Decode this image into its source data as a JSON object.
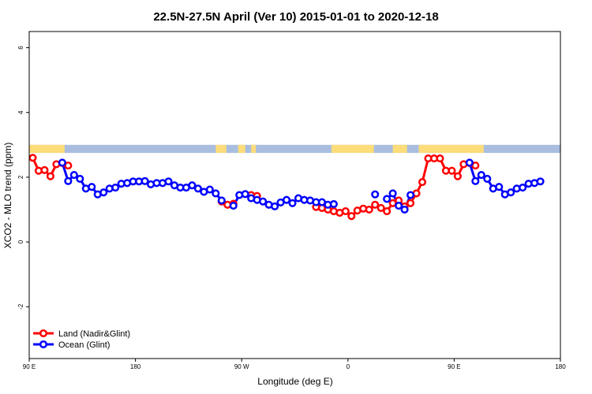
{
  "chart_data": {
    "type": "line",
    "title": "22.5N-27.5N April (Ver 10)   2015-01-01 to 2020-12-18",
    "xlabel": "Longitude (deg E)",
    "ylabel": "XCO2 - MLO trend (ppm)",
    "x_ticks": [
      {
        "value": 90,
        "label": "90 E"
      },
      {
        "value": 180,
        "label": "180"
      },
      {
        "value": 270,
        "label": "90 W"
      },
      {
        "value": 360,
        "label": "0"
      },
      {
        "value": 450,
        "label": "90 E"
      },
      {
        "value": 540,
        "label": "180"
      }
    ],
    "xlim": [
      90,
      540
    ],
    "y_ticks": [
      {
        "value": -2,
        "label": "-2"
      },
      {
        "value": 0,
        "label": "0"
      },
      {
        "value": 2,
        "label": "2"
      },
      {
        "value": 4,
        "label": "4"
      },
      {
        "value": 6,
        "label": "6"
      }
    ],
    "ylim": [
      -3.6,
      6.5
    ],
    "colors": {
      "land": "#ff0000",
      "ocean": "#0000ff",
      "map_land": "#fddc7a",
      "map_ocean": "#a9bedf"
    },
    "map_strip": {
      "y_range": [
        2.75,
        3.0
      ],
      "land_segments": [
        [
          90,
          120
        ],
        [
          248,
          257
        ],
        [
          267,
          273
        ],
        [
          278,
          282
        ],
        [
          346,
          382
        ],
        [
          398,
          410
        ],
        [
          420,
          475
        ]
      ]
    },
    "series": [
      {
        "name": "Land (Nadir&Glint)",
        "segments": [
          [
            [
              93,
              2.6
            ],
            [
              98,
              2.2
            ],
            [
              103,
              2.22
            ],
            [
              108,
              2.03
            ],
            [
              113,
              2.4
            ],
            [
              118,
              2.44
            ],
            [
              123,
              2.36
            ]
          ],
          [
            [
              253,
              1.25
            ],
            [
              258,
              1.15
            ],
            [
              263,
              1.18
            ]
          ],
          [
            [
              278,
              1.45
            ],
            [
              283,
              1.42
            ]
          ],
          [
            [
              333,
              1.08
            ],
            [
              338,
              1.05
            ],
            [
              343,
              1.0
            ],
            [
              348,
              0.95
            ],
            [
              353,
              0.9
            ],
            [
              358,
              0.95
            ],
            [
              363,
              0.8
            ],
            [
              368,
              0.97
            ],
            [
              373,
              1.03
            ],
            [
              378,
              1.0
            ],
            [
              383,
              1.15
            ],
            [
              388,
              1.05
            ],
            [
              393,
              0.95
            ],
            [
              398,
              1.2
            ],
            [
              403,
              1.28
            ],
            [
              408,
              1.1
            ],
            [
              413,
              1.2
            ],
            [
              418,
              1.5
            ],
            [
              423,
              1.85
            ],
            [
              428,
              2.58
            ],
            [
              433,
              2.58
            ],
            [
              438,
              2.58
            ],
            [
              443,
              2.2
            ],
            [
              448,
              2.2
            ],
            [
              453,
              2.03
            ],
            [
              458,
              2.4
            ],
            [
              463,
              2.44
            ],
            [
              468,
              2.36
            ]
          ]
        ]
      },
      {
        "name": "Ocean (Glint)",
        "segments": [
          [
            [
              118,
              2.45
            ],
            [
              123,
              1.88
            ],
            [
              128,
              2.07
            ],
            [
              133,
              1.95
            ],
            [
              138,
              1.65
            ],
            [
              143,
              1.7
            ],
            [
              148,
              1.47
            ],
            [
              153,
              1.53
            ],
            [
              158,
              1.65
            ],
            [
              163,
              1.68
            ],
            [
              168,
              1.8
            ],
            [
              173,
              1.82
            ],
            [
              178,
              1.87
            ],
            [
              183,
              1.87
            ],
            [
              188,
              1.88
            ],
            [
              193,
              1.78
            ],
            [
              198,
              1.82
            ],
            [
              203,
              1.82
            ],
            [
              208,
              1.87
            ],
            [
              213,
              1.75
            ],
            [
              218,
              1.68
            ],
            [
              223,
              1.68
            ],
            [
              228,
              1.75
            ],
            [
              233,
              1.65
            ],
            [
              238,
              1.55
            ],
            [
              243,
              1.62
            ],
            [
              248,
              1.5
            ],
            [
              253,
              1.28
            ]
          ],
          [
            [
              263,
              1.12
            ],
            [
              268,
              1.45
            ],
            [
              273,
              1.48
            ],
            [
              278,
              1.35
            ],
            [
              283,
              1.3
            ],
            [
              288,
              1.25
            ],
            [
              293,
              1.15
            ],
            [
              298,
              1.1
            ],
            [
              303,
              1.22
            ],
            [
              308,
              1.3
            ],
            [
              313,
              1.2
            ],
            [
              318,
              1.35
            ],
            [
              323,
              1.3
            ],
            [
              328,
              1.28
            ],
            [
              333,
              1.23
            ],
            [
              338,
              1.23
            ],
            [
              343,
              1.15
            ],
            [
              348,
              1.17
            ]
          ],
          [
            [
              383,
              1.47
            ]
          ],
          [
            [
              393,
              1.33
            ],
            [
              398,
              1.5
            ],
            [
              403,
              1.12
            ],
            [
              408,
              1.0
            ],
            [
              413,
              1.45
            ]
          ],
          [
            [
              463,
              2.45
            ],
            [
              468,
              1.88
            ],
            [
              473,
              2.07
            ],
            [
              478,
              1.95
            ],
            [
              483,
              1.65
            ],
            [
              488,
              1.7
            ],
            [
              493,
              1.47
            ],
            [
              498,
              1.53
            ],
            [
              503,
              1.65
            ],
            [
              508,
              1.68
            ],
            [
              513,
              1.8
            ],
            [
              518,
              1.82
            ],
            [
              523,
              1.87
            ]
          ]
        ]
      }
    ],
    "legend": {
      "position": "bottom-left",
      "entries": [
        "Land (Nadir&Glint)",
        "Ocean (Glint)"
      ]
    },
    "grid": false
  }
}
